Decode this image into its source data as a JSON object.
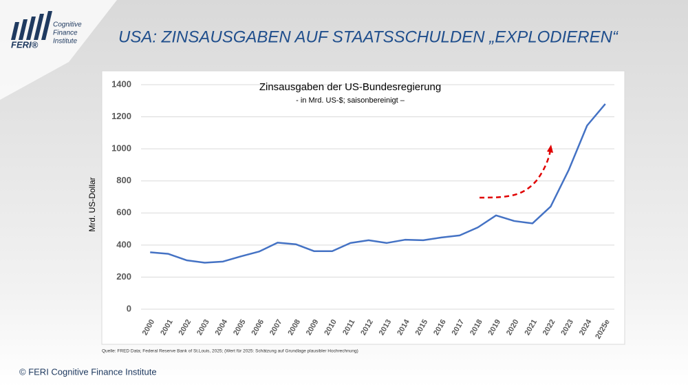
{
  "header": {
    "logo": {
      "name": "FERI®",
      "lines": [
        "Cognitive",
        "Finance",
        "Institute"
      ]
    },
    "title": "USA: ZINSAUSGABEN AUF STAATSSCHULDEN „EXPLODIEREN“"
  },
  "chart_data": {
    "type": "line",
    "title": "Zinsausgaben der US-Bundesregierung",
    "subtitle": "- in Mrd. US-$; saisonbereinigt –",
    "y_label": "Mrd. US-Dollar",
    "categories": [
      "2000",
      "2001",
      "2002",
      "2003",
      "2004",
      "2005",
      "2006",
      "2007",
      "2008",
      "2009",
      "2010",
      "2011",
      "2012",
      "2013",
      "2014",
      "2015",
      "2016",
      "2017",
      "2018",
      "2019",
      "2020",
      "2021",
      "2022",
      "2023",
      "2024",
      "2025e"
    ],
    "values": [
      355,
      345,
      305,
      290,
      297,
      330,
      360,
      415,
      405,
      362,
      362,
      413,
      430,
      413,
      433,
      430,
      447,
      460,
      510,
      585,
      550,
      535,
      640,
      870,
      1145,
      1280
    ],
    "color": "#4472c4",
    "ylim": [
      0,
      1400
    ],
    "yticks": [
      0,
      200,
      400,
      600,
      800,
      1000,
      1200,
      1400
    ],
    "grid": true
  },
  "source": "Quelle: FRED Data; Federal Reserve Bank of St.Louis, 2025; (Wert für 2025: Schätzung auf Grundlage plausibler Hochrechnung)",
  "footer": "© FERI Cognitive Finance Institute"
}
